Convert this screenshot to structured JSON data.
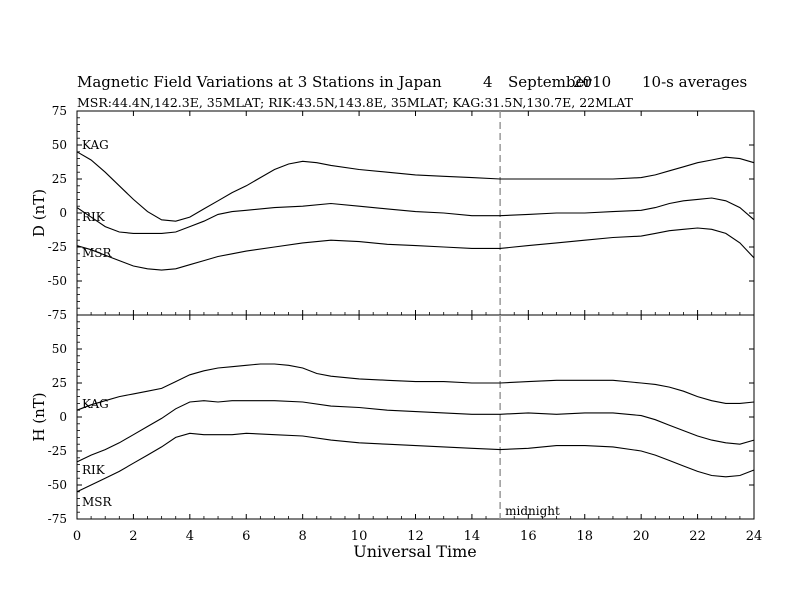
{
  "title": {
    "text": "Magnetic Field Variations at 3 Stations in Japan",
    "day": "4",
    "month": "September",
    "year": "2010",
    "averaging": "10-s averages"
  },
  "subtitle": "MSR:44.4N,142.3E, 35MLAT;  RIK:43.5N,143.8E, 35MLAT;  KAG:31.5N,130.7E, 22MLAT",
  "chart_data": {
    "type": "line",
    "xlabel": "Universal Time",
    "xlim": [
      0,
      24
    ],
    "x_ticks": [
      0,
      2,
      4,
      6,
      8,
      10,
      12,
      14,
      16,
      18,
      20,
      22,
      24
    ],
    "x_tick_labels": [
      "0",
      "2",
      "4",
      "6",
      "8",
      "10",
      "12",
      "14",
      "16",
      "18",
      "20",
      "22",
      "24"
    ],
    "grid": false,
    "annotations": [
      {
        "text": "midnight",
        "x": 15,
        "style": "dashed vertical line"
      }
    ],
    "panels": [
      {
        "ylabel": "D (nT)",
        "ylim": [
          -75,
          75
        ],
        "y_ticks": [
          75,
          50,
          25,
          0,
          -25,
          -50,
          -75
        ],
        "y_tick_labels": [
          "75",
          "50",
          "25",
          "0",
          "-25",
          "-50",
          "-75"
        ],
        "series": [
          {
            "name": "KAG",
            "x": [
              0,
              0.5,
              1,
              1.5,
              2,
              2.5,
              3,
              3.5,
              4,
              4.5,
              5,
              5.5,
              6,
              6.5,
              7,
              7.5,
              8,
              8.5,
              9,
              10,
              11,
              12,
              13,
              14,
              15,
              16,
              17,
              18,
              19,
              20,
              20.5,
              21,
              21.5,
              22,
              22.5,
              23,
              23.5,
              24
            ],
            "y": [
              45,
              39,
              30,
              20,
              10,
              1,
              -5,
              -6,
              -3,
              3,
              9,
              15,
              20,
              26,
              32,
              36,
              38,
              37,
              35,
              32,
              30,
              28,
              27,
              26,
              25,
              25,
              25,
              25,
              25,
              26,
              28,
              31,
              34,
              37,
              39,
              41,
              40,
              37
            ]
          },
          {
            "name": "RIK",
            "x": [
              0,
              0.5,
              1,
              1.5,
              2,
              2.5,
              3,
              3.5,
              4,
              4.5,
              5,
              5.5,
              6,
              7,
              8,
              9,
              10,
              11,
              12,
              13,
              14,
              15,
              16,
              17,
              18,
              19,
              20,
              20.5,
              21,
              21.5,
              22,
              22.5,
              23,
              23.5,
              24
            ],
            "y": [
              4,
              -3,
              -10,
              -14,
              -15,
              -15,
              -15,
              -14,
              -10,
              -6,
              -1,
              1,
              2,
              4,
              5,
              7,
              5,
              3,
              1,
              0,
              -2,
              -2,
              -1,
              0,
              0,
              1,
              2,
              4,
              7,
              9,
              10,
              11,
              9,
              4,
              -5
            ]
          },
          {
            "name": "MSR",
            "x": [
              0,
              0.5,
              1,
              1.5,
              2,
              2.5,
              3,
              3.5,
              4,
              4.5,
              5,
              5.5,
              6,
              7,
              8,
              9,
              10,
              11,
              12,
              13,
              14,
              15,
              16,
              17,
              18,
              19,
              20,
              20.5,
              21,
              21.5,
              22,
              22.5,
              23,
              23.5,
              24
            ],
            "y": [
              -24,
              -27,
              -31,
              -35,
              -39,
              -41,
              -42,
              -41,
              -38,
              -35,
              -32,
              -30,
              -28,
              -25,
              -22,
              -20,
              -21,
              -23,
              -24,
              -25,
              -26,
              -26,
              -24,
              -22,
              -20,
              -18,
              -17,
              -15,
              -13,
              -12,
              -11,
              -12,
              -15,
              -22,
              -33
            ]
          }
        ]
      },
      {
        "ylabel": "H (nT)",
        "ylim": [
          -75,
          75
        ],
        "y_ticks": [
          75,
          50,
          25,
          0,
          -25,
          -50,
          -75
        ],
        "y_tick_labels": [
          "",
          "50",
          "25",
          "0",
          "-25",
          "-50",
          "-75"
        ],
        "series": [
          {
            "name": "KAG",
            "x": [
              0,
              0.5,
              1,
              1.5,
              2,
              2.5,
              3,
              3.5,
              4,
              4.5,
              5,
              5.5,
              6,
              6.5,
              7,
              7.5,
              8,
              8.5,
              9,
              10,
              11,
              12,
              13,
              14,
              15,
              16,
              17,
              18,
              19,
              20,
              20.5,
              21,
              21.5,
              22,
              22.5,
              23,
              23.5,
              24
            ],
            "y": [
              5,
              9,
              12,
              15,
              17,
              19,
              21,
              26,
              31,
              34,
              36,
              37,
              38,
              39,
              39,
              38,
              36,
              32,
              30,
              28,
              27,
              26,
              26,
              25,
              25,
              26,
              27,
              27,
              27,
              25,
              24,
              22,
              19,
              15,
              12,
              10,
              10,
              11
            ]
          },
          {
            "name": "RIK",
            "x": [
              0,
              0.5,
              1,
              1.5,
              2,
              2.5,
              3,
              3.5,
              4,
              4.5,
              5,
              5.5,
              6,
              7,
              8,
              9,
              10,
              11,
              12,
              13,
              14,
              15,
              16,
              17,
              18,
              19,
              20,
              20.5,
              21,
              21.5,
              22,
              22.5,
              23,
              23.5,
              24
            ],
            "y": [
              -33,
              -28,
              -24,
              -19,
              -13,
              -7,
              -1,
              6,
              11,
              12,
              11,
              12,
              12,
              12,
              11,
              8,
              7,
              5,
              4,
              3,
              2,
              2,
              3,
              2,
              3,
              3,
              1,
              -2,
              -6,
              -10,
              -14,
              -17,
              -19,
              -20,
              -17
            ]
          },
          {
            "name": "MSR",
            "x": [
              0,
              0.5,
              1,
              1.5,
              2,
              2.5,
              3,
              3.5,
              4,
              4.5,
              5,
              5.5,
              6,
              7,
              8,
              9,
              10,
              11,
              12,
              13,
              14,
              15,
              16,
              17,
              18,
              19,
              20,
              20.5,
              21,
              21.5,
              22,
              22.5,
              23,
              23.5,
              24
            ],
            "y": [
              -55,
              -50,
              -45,
              -40,
              -34,
              -28,
              -22,
              -15,
              -12,
              -13,
              -13,
              -13,
              -12,
              -13,
              -14,
              -17,
              -19,
              -20,
              -21,
              -22,
              -23,
              -24,
              -23,
              -21,
              -21,
              -22,
              -25,
              -28,
              -32,
              -36,
              -40,
              -43,
              -44,
              -43,
              -39
            ]
          }
        ]
      }
    ]
  }
}
